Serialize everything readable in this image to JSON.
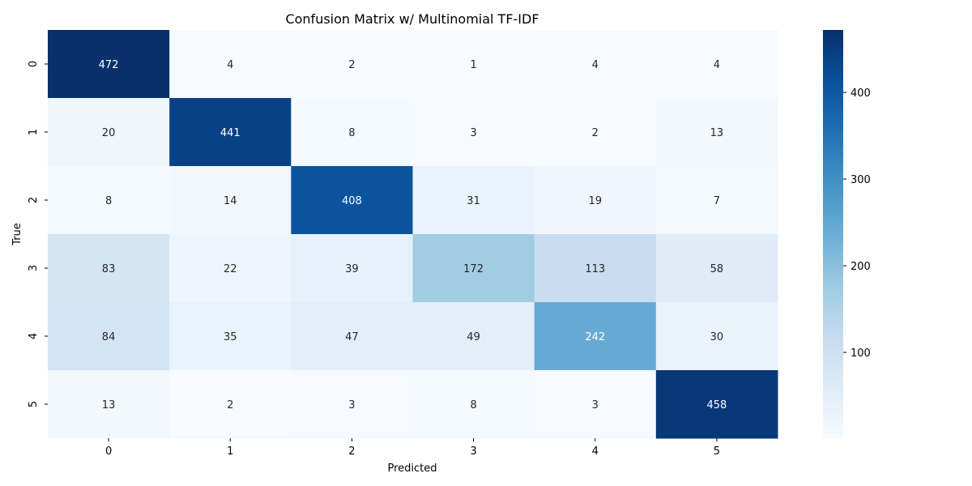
{
  "chart_data": {
    "type": "heatmap",
    "title": "Confusion Matrix w/ Multinomial TF-IDF",
    "xlabel": "Predicted",
    "ylabel": "True",
    "x_categories": [
      "0",
      "1",
      "2",
      "3",
      "4",
      "5"
    ],
    "y_categories": [
      "0",
      "1",
      "2",
      "3",
      "4",
      "5"
    ],
    "values": [
      [
        472,
        4,
        2,
        1,
        4,
        4
      ],
      [
        20,
        441,
        8,
        3,
        2,
        13
      ],
      [
        8,
        14,
        408,
        31,
        19,
        7
      ],
      [
        83,
        22,
        39,
        172,
        113,
        58
      ],
      [
        84,
        35,
        47,
        49,
        242,
        30
      ],
      [
        13,
        2,
        3,
        8,
        3,
        458
      ]
    ],
    "colormap": "Blues",
    "color_range": [
      1,
      472
    ],
    "colorbar_ticks": [
      100,
      200,
      300,
      400
    ],
    "colors": {
      "low": "#f7fbff",
      "high": "#08306b"
    }
  }
}
